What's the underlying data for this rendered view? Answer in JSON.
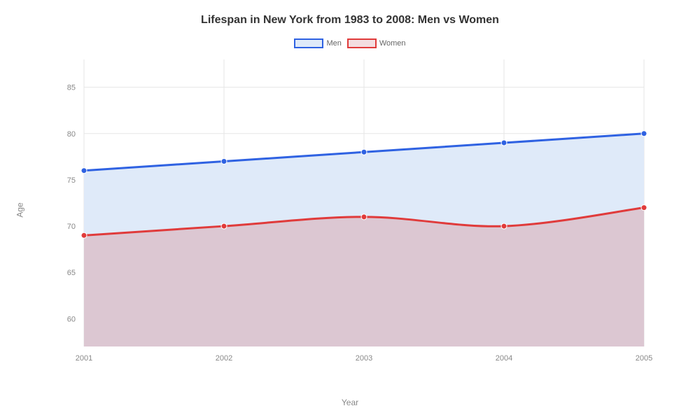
{
  "chart": {
    "type": "area-line",
    "title": "Lifespan in New York from 1983 to 2008: Men vs Women",
    "title_fontsize": 16,
    "title_color": "#333333",
    "background_color": "#ffffff",
    "plot_background_color": "#ffffff",
    "grid_color": "#e6e6e6",
    "axis_label_color": "#888888",
    "tick_label_color": "#888888",
    "x": {
      "label": "Year",
      "categories": [
        "2001",
        "2002",
        "2003",
        "2004",
        "2005"
      ],
      "type": "category"
    },
    "y": {
      "label": "Age",
      "min": 57,
      "max": 88,
      "ticks": [
        60,
        65,
        70,
        75,
        80,
        85
      ],
      "tick_step": 5
    },
    "series": [
      {
        "name": "Men",
        "values": [
          76,
          77,
          78,
          79,
          80
        ],
        "line_color": "#2f62e2",
        "line_width": 3,
        "marker_color": "#2f62e2",
        "marker_size": 4,
        "fill_color": "#dfeaf9",
        "fill_opacity": 1.0,
        "legend_fill": "#dfeaf9",
        "legend_border": "#2f62e2"
      },
      {
        "name": "Women",
        "values": [
          69,
          70,
          71,
          70,
          72
        ],
        "line_color": "#e03b3b",
        "line_width": 3,
        "marker_color": "#e03b3b",
        "marker_size": 4,
        "fill_color": "#dcc7d2",
        "fill_opacity": 1.0,
        "legend_fill": "#f3dde0",
        "legend_border": "#e03b3b"
      }
    ],
    "legend": {
      "position": "top",
      "label_fontsize": 11,
      "label_color": "#666666"
    },
    "inner_padding_x": 50
  }
}
